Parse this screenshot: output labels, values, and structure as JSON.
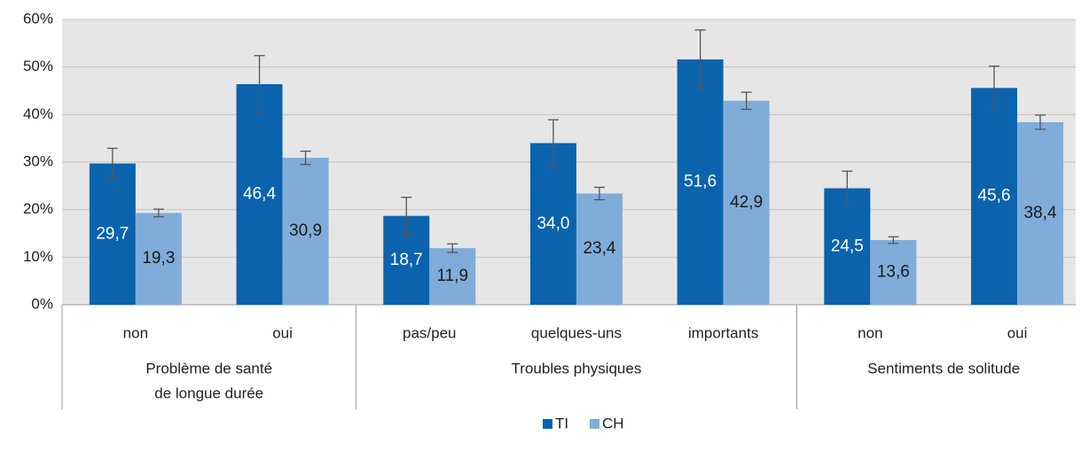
{
  "chart_data": {
    "type": "bar",
    "categories": [
      "non",
      "oui",
      "pas/peu",
      "quelques-uns",
      "importants",
      "non",
      "oui"
    ],
    "groups": [
      {
        "label": [
          "Problème de santé",
          "de longue durée"
        ],
        "span": 2
      },
      {
        "label": [
          "Troubles physiques"
        ],
        "span": 3
      },
      {
        "label": [
          "Sentiments de solitude"
        ],
        "span": 2
      }
    ],
    "series": [
      {
        "name": "TI",
        "color": "#0b63ad",
        "label_color": "#ffffff",
        "values": [
          29.7,
          46.4,
          18.7,
          34.0,
          51.6,
          24.5,
          45.6
        ],
        "value_labels": [
          "29,7",
          "46,4",
          "18,7",
          "34,0",
          "51,6",
          "24,5",
          "45,6"
        ],
        "errors": [
          3.2,
          6.0,
          3.9,
          4.9,
          6.2,
          3.6,
          4.6
        ]
      },
      {
        "name": "CH",
        "color": "#80acd9",
        "label_color": "#1a1a1a",
        "values": [
          19.3,
          30.9,
          11.9,
          23.4,
          42.9,
          13.6,
          38.4
        ],
        "value_labels": [
          "19,3",
          "30,9",
          "11,9",
          "23,4",
          "42,9",
          "13,6",
          "38,4"
        ],
        "errors": [
          0.8,
          1.4,
          0.9,
          1.3,
          1.8,
          0.7,
          1.5
        ]
      }
    ],
    "ylim": [
      0,
      60
    ],
    "yticks": [
      {
        "value": 0,
        "label": "0%"
      },
      {
        "value": 10,
        "label": "10%"
      },
      {
        "value": 20,
        "label": "20%"
      },
      {
        "value": 30,
        "label": "30%"
      },
      {
        "value": 40,
        "label": "40%"
      },
      {
        "value": 50,
        "label": "50%"
      },
      {
        "value": 60,
        "label": "60%"
      }
    ],
    "grid": true,
    "legend": "bottom"
  }
}
